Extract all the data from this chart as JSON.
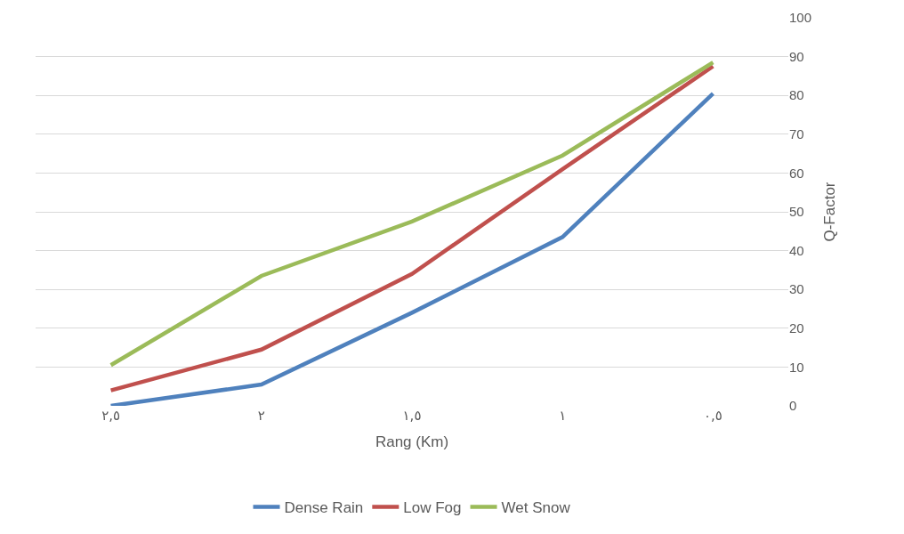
{
  "chart_data": {
    "type": "line",
    "xlabel": "Rang (Km)",
    "ylabel": "Q-Factor",
    "categories": [
      "٢,٥",
      "٢",
      "١,٥",
      "١",
      "٠,٥"
    ],
    "series": [
      {
        "name": "Dense Rain",
        "color": "#4f81bd",
        "values": [
          0,
          5.5,
          24,
          43.5,
          80.5
        ]
      },
      {
        "name": "Low Fog",
        "color": "#c0504d",
        "values": [
          4,
          14.5,
          34,
          61,
          87.5
        ]
      },
      {
        "name": "Wet Snow",
        "color": "#9bbb59",
        "values": [
          10.5,
          33.5,
          47.5,
          64.5,
          88.5
        ]
      }
    ],
    "ylim": [
      0,
      100
    ],
    "yticks": [
      0,
      10,
      20,
      30,
      40,
      50,
      60,
      70,
      80,
      90,
      100
    ],
    "grid": "y",
    "legend": "bottom",
    "marker": "none",
    "line_style": "solid"
  }
}
